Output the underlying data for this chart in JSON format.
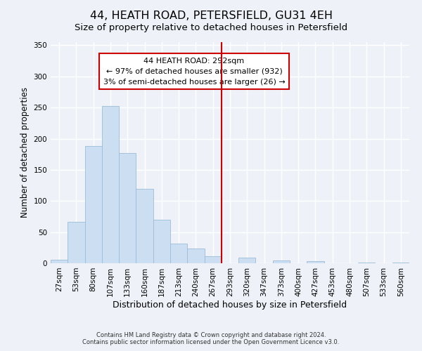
{
  "title": "44, HEATH ROAD, PETERSFIELD, GU31 4EH",
  "subtitle": "Size of property relative to detached houses in Petersfield",
  "xlabel": "Distribution of detached houses by size in Petersfield",
  "ylabel": "Number of detached properties",
  "bar_labels": [
    "27sqm",
    "53sqm",
    "80sqm",
    "107sqm",
    "133sqm",
    "160sqm",
    "187sqm",
    "213sqm",
    "240sqm",
    "267sqm",
    "293sqm",
    "320sqm",
    "347sqm",
    "373sqm",
    "400sqm",
    "427sqm",
    "453sqm",
    "480sqm",
    "507sqm",
    "533sqm",
    "560sqm"
  ],
  "bar_values": [
    6,
    67,
    188,
    252,
    177,
    119,
    70,
    31,
    24,
    11,
    0,
    9,
    0,
    4,
    0,
    3,
    0,
    0,
    1,
    0,
    1
  ],
  "bar_color": "#ccdff2",
  "bar_edge_color": "#9bbcd8",
  "vline_color": "#cc0000",
  "ylim": [
    0,
    355
  ],
  "yticks": [
    0,
    50,
    100,
    150,
    200,
    250,
    300,
    350
  ],
  "annotation_title": "44 HEATH ROAD: 292sqm",
  "annotation_line1": "← 97% of detached houses are smaller (932)",
  "annotation_line2": "3% of semi-detached houses are larger (26) →",
  "footer_line1": "Contains HM Land Registry data © Crown copyright and database right 2024.",
  "footer_line2": "Contains public sector information licensed under the Open Government Licence v3.0.",
  "background_color": "#eef2f8",
  "grid_color": "#ffffff",
  "title_fontsize": 11.5,
  "subtitle_fontsize": 9.5,
  "ylabel_fontsize": 8.5,
  "xlabel_fontsize": 9,
  "tick_fontsize": 7.5,
  "ann_fontsize": 8,
  "footer_fontsize": 6
}
